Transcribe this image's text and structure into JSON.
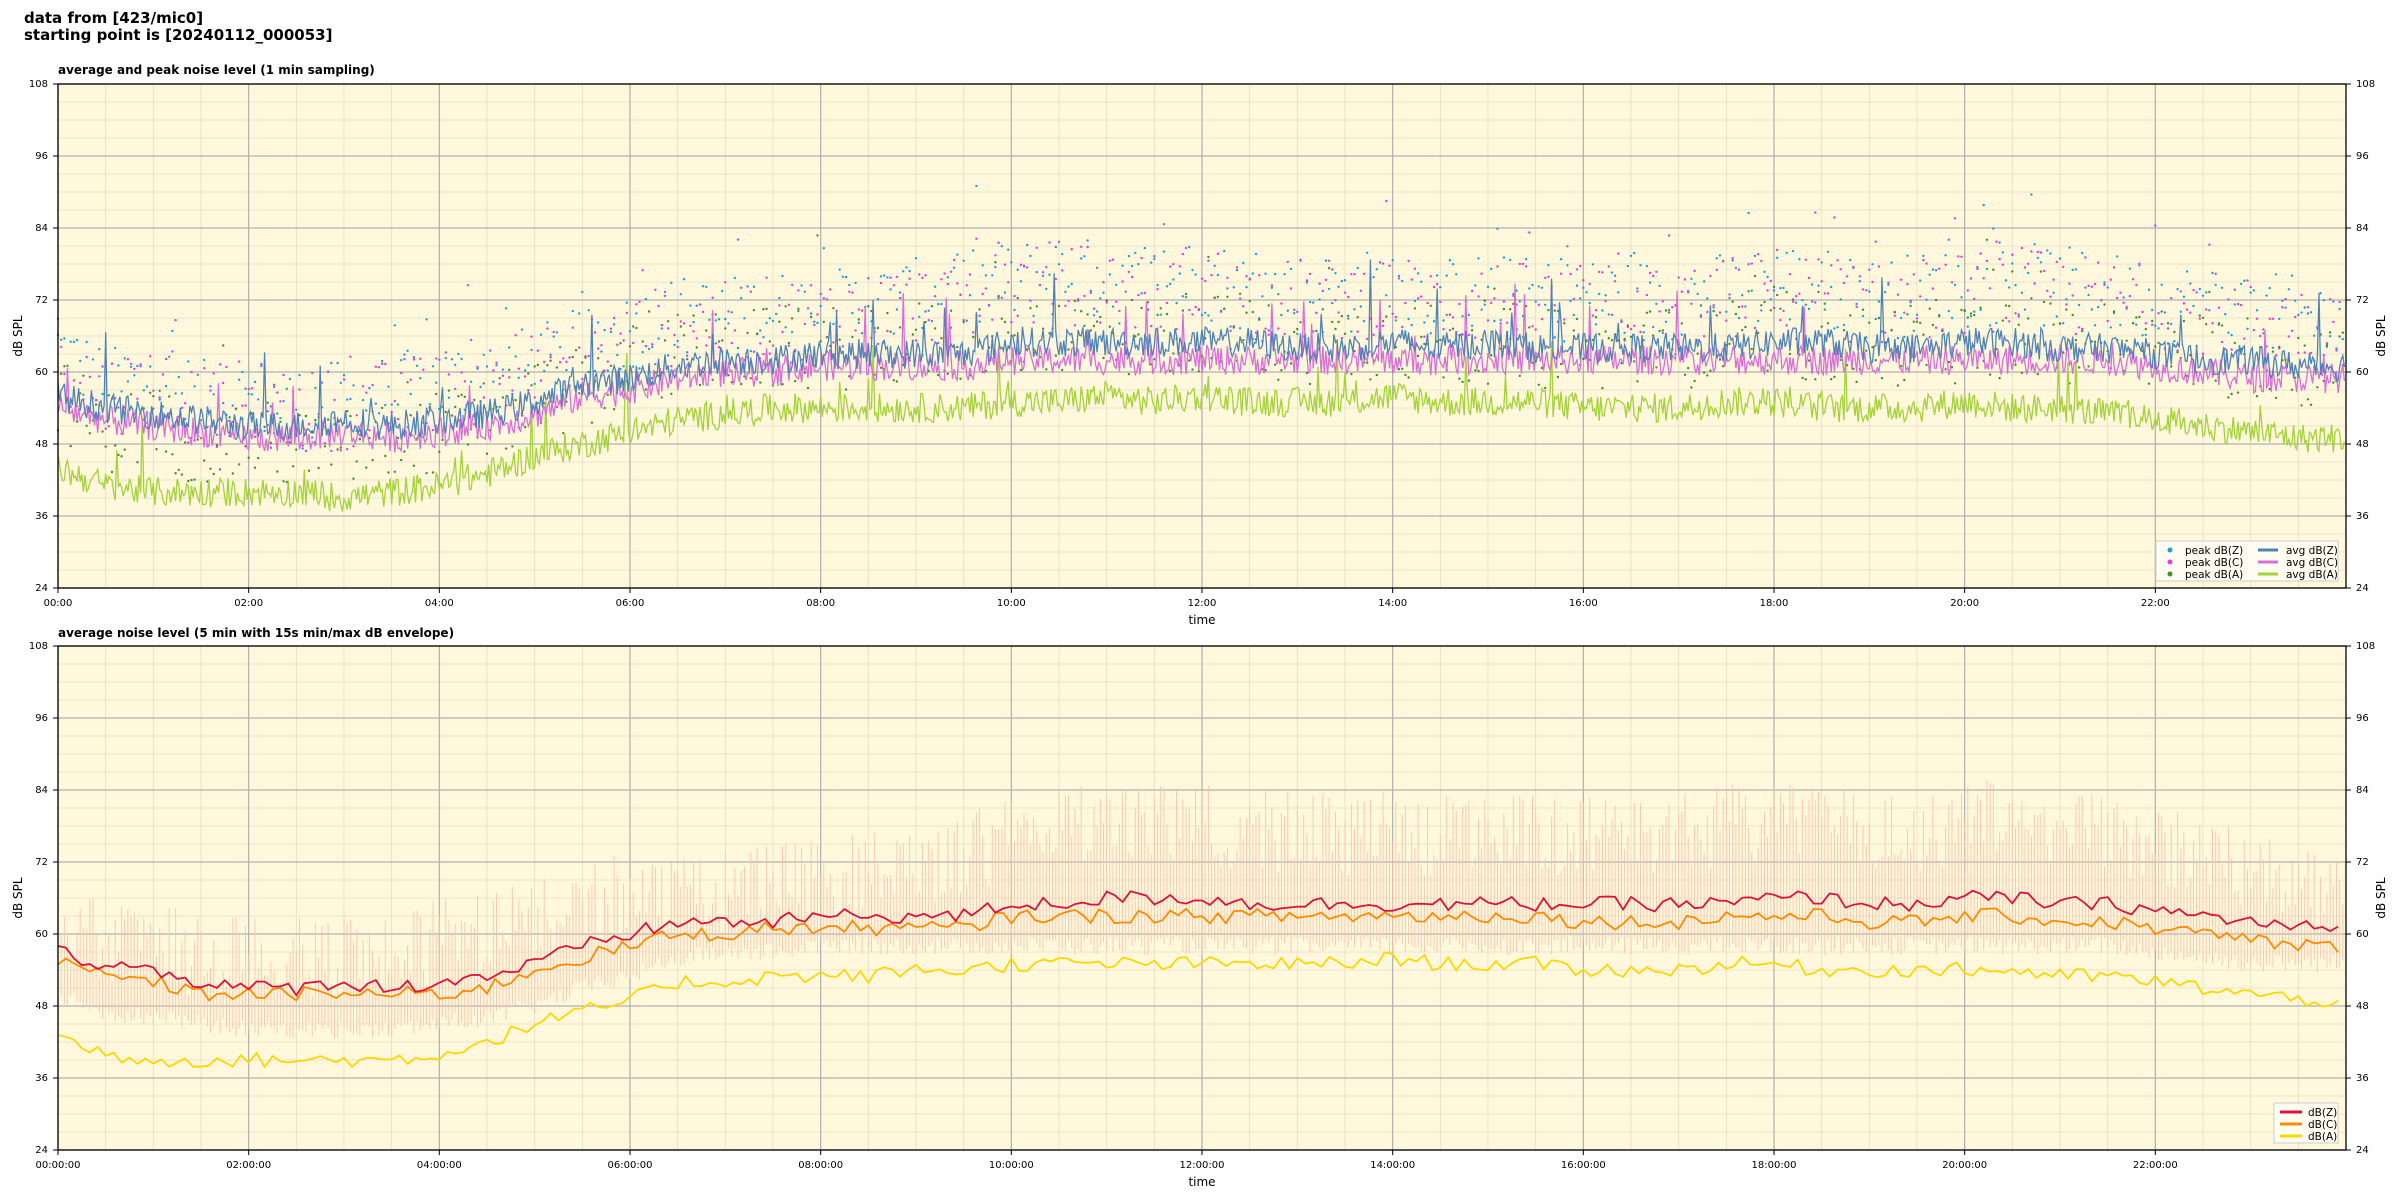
{
  "header": {
    "line1": "data from [423/mic0]",
    "line2": "starting point is [20240112_000053]"
  },
  "colors": {
    "plot_bg": "#fff8dc",
    "grid_major": "#b0b0b0",
    "grid_minor": "#e3ddc4",
    "peak_z": "#1f9ed9",
    "peak_c": "#e23ce0",
    "peak_a": "#4a8a2a",
    "avg_z": "#4f83b7",
    "avg_c": "#d86fd8",
    "avg_a": "#a4d23a",
    "z": "#dc143c",
    "c": "#ff8c00",
    "a": "#ffd700",
    "envelope": "#f6c2ad"
  },
  "chart_data": [
    {
      "type": "line",
      "title": "average and peak noise level (1 min sampling)",
      "xlabel": "time",
      "ylabel": "dB SPL",
      "ylim": [
        24,
        108
      ],
      "yticks": [
        24,
        36,
        48,
        60,
        72,
        84,
        96,
        108
      ],
      "xlim_hours": [
        0,
        24
      ],
      "xtick_labels": [
        "00:00",
        "02:00",
        "04:00",
        "06:00",
        "08:00",
        "10:00",
        "12:00",
        "14:00",
        "16:00",
        "18:00",
        "20:00",
        "22:00"
      ],
      "grid": true,
      "legend_position": "lower-right",
      "x_hours": [
        0,
        0.5,
        1,
        1.5,
        2,
        2.5,
        3,
        3.5,
        4,
        4.5,
        5,
        5.5,
        6,
        6.5,
        7,
        7.5,
        8,
        8.5,
        9,
        9.5,
        10,
        10.5,
        11,
        11.5,
        12,
        12.5,
        13,
        13.5,
        14,
        14.5,
        15,
        15.5,
        16,
        16.5,
        17,
        17.5,
        18,
        18.5,
        19,
        19.5,
        20,
        20.5,
        21,
        21.5,
        22,
        22.5,
        23,
        23.5,
        24
      ],
      "series": [
        {
          "name": "peak dB(Z)",
          "kind": "scatter",
          "values": [
            64,
            57,
            59,
            55,
            56,
            54,
            55,
            56,
            58,
            59,
            61,
            63,
            67,
            69,
            69,
            70,
            70,
            71,
            72,
            73,
            75,
            76,
            75,
            74,
            76,
            73,
            73,
            73,
            74,
            72,
            73,
            72,
            72,
            72,
            72,
            73,
            75,
            74,
            72,
            73,
            74,
            75,
            74,
            73,
            72,
            71,
            70,
            69,
            69
          ]
        },
        {
          "name": "peak dB(C)",
          "kind": "scatter",
          "values": [
            63,
            56,
            58,
            54,
            55,
            53,
            54,
            55,
            57,
            58,
            60,
            62,
            66,
            68,
            68,
            69,
            69,
            70,
            71,
            72,
            74,
            75,
            74,
            73,
            75,
            72,
            72,
            72,
            73,
            71,
            72,
            71,
            71,
            71,
            71,
            72,
            74,
            73,
            71,
            72,
            73,
            74,
            73,
            72,
            71,
            70,
            69,
            68,
            68
          ]
        },
        {
          "name": "peak dB(A)",
          "kind": "scatter",
          "values": [
            56,
            50,
            51,
            48,
            49,
            47,
            47,
            48,
            50,
            52,
            55,
            57,
            61,
            63,
            63,
            64,
            64,
            64,
            65,
            65,
            66,
            67,
            66,
            66,
            67,
            65,
            65,
            65,
            66,
            64,
            65,
            64,
            64,
            64,
            64,
            65,
            66,
            65,
            64,
            65,
            65,
            66,
            65,
            65,
            64,
            63,
            62,
            61,
            61
          ]
        },
        {
          "name": "avg dB(Z)",
          "kind": "line",
          "values": [
            56,
            54,
            53,
            52,
            51,
            51,
            52,
            51,
            52,
            53,
            55,
            58,
            59,
            61,
            62,
            62,
            63,
            63,
            63,
            63,
            65,
            65,
            65,
            65,
            65,
            65,
            64,
            64,
            65,
            64,
            65,
            64,
            64,
            64,
            64,
            64,
            65,
            65,
            64,
            64,
            65,
            65,
            64,
            64,
            63,
            62,
            62,
            61,
            61
          ]
        },
        {
          "name": "avg dB(C)",
          "kind": "line",
          "values": [
            54,
            52,
            51,
            50,
            49,
            49,
            50,
            49,
            50,
            51,
            53,
            56,
            57,
            59,
            60,
            60,
            61,
            61,
            61,
            61,
            62,
            62,
            62,
            62,
            62,
            62,
            62,
            62,
            62,
            62,
            62,
            62,
            62,
            62,
            62,
            62,
            62,
            62,
            62,
            62,
            62,
            62,
            62,
            62,
            61,
            60,
            59,
            59,
            59
          ]
        },
        {
          "name": "avg dB(A)",
          "kind": "line",
          "values": [
            44,
            41,
            40,
            40,
            40,
            40,
            39,
            40,
            41,
            43,
            46,
            48,
            50,
            52,
            53,
            54,
            54,
            54,
            54,
            54,
            55,
            55,
            56,
            55,
            56,
            55,
            55,
            55,
            56,
            55,
            55,
            55,
            54,
            54,
            54,
            55,
            55,
            54,
            54,
            54,
            55,
            54,
            54,
            53,
            52,
            51,
            50,
            49,
            49
          ]
        }
      ]
    },
    {
      "type": "line",
      "title": "average noise level (5 min with 15s min/max dB envelope)",
      "xlabel": "time",
      "ylabel": "dB SPL",
      "ylim": [
        24,
        108
      ],
      "yticks": [
        24,
        36,
        48,
        60,
        72,
        84,
        96,
        108
      ],
      "xlim_hours": [
        0,
        24
      ],
      "xtick_labels": [
        "00:00:00",
        "02:00:00",
        "04:00:00",
        "06:00:00",
        "08:00:00",
        "10:00:00",
        "12:00:00",
        "14:00:00",
        "16:00:00",
        "18:00:00",
        "20:00:00",
        "22:00:00"
      ],
      "grid": true,
      "legend_position": "lower-right",
      "x_hours": [
        0,
        0.5,
        1,
        1.5,
        2,
        2.5,
        3,
        3.5,
        4,
        4.5,
        5,
        5.5,
        6,
        6.5,
        7,
        7.5,
        8,
        8.5,
        9,
        9.5,
        10,
        10.5,
        11,
        11.5,
        12,
        12.5,
        13,
        13.5,
        14,
        14.5,
        15,
        15.5,
        16,
        16.5,
        17,
        17.5,
        18,
        18.5,
        19,
        19.5,
        20,
        20.5,
        21,
        21.5,
        22,
        22.5,
        23,
        23.5,
        24
      ],
      "envelope": {
        "min": [
          50,
          47,
          46,
          45,
          44,
          44,
          44,
          44,
          45,
          46,
          48,
          51,
          53,
          56,
          57,
          57,
          58,
          58,
          58,
          58,
          58,
          58,
          58,
          58,
          58,
          58,
          58,
          58,
          58,
          58,
          58,
          58,
          58,
          58,
          58,
          58,
          58,
          58,
          58,
          58,
          58,
          58,
          58,
          58,
          57,
          56,
          55,
          55,
          55
        ],
        "max": [
          70,
          65,
          66,
          63,
          64,
          63,
          63,
          64,
          66,
          67,
          69,
          71,
          74,
          74,
          74,
          75,
          76,
          77,
          78,
          80,
          84,
          86,
          86,
          85,
          86,
          84,
          84,
          83,
          85,
          83,
          84,
          83,
          83,
          83,
          84,
          85,
          86,
          85,
          84,
          84,
          86,
          86,
          85,
          84,
          82,
          80,
          78,
          76,
          74
        ]
      },
      "series": [
        {
          "name": "dB(Z)",
          "values": [
            57,
            55,
            54,
            52,
            51,
            51,
            52,
            51,
            52,
            53,
            55,
            58,
            60,
            62,
            62,
            62,
            63,
            63,
            63,
            63,
            65,
            65,
            66,
            66,
            66,
            65,
            65,
            65,
            65,
            65,
            65,
            65,
            65,
            65,
            65,
            65,
            66,
            66,
            65,
            65,
            66,
            66,
            65,
            65,
            64,
            63,
            62,
            61,
            61
          ]
        },
        {
          "name": "dB(C)",
          "values": [
            55,
            53,
            52,
            50,
            50,
            50,
            50,
            50,
            50,
            51,
            54,
            56,
            58,
            60,
            60,
            61,
            61,
            61,
            61,
            61,
            63,
            63,
            63,
            63,
            63,
            63,
            63,
            63,
            63,
            63,
            63,
            63,
            62,
            62,
            62,
            63,
            63,
            63,
            62,
            62,
            63,
            63,
            62,
            62,
            61,
            60,
            59,
            58,
            58
          ]
        },
        {
          "name": "dB(A)",
          "values": [
            43,
            40,
            39,
            39,
            39,
            39,
            39,
            39,
            40,
            42,
            45,
            47,
            49,
            52,
            52,
            53,
            53,
            53,
            54,
            54,
            55,
            55,
            55,
            55,
            55,
            55,
            55,
            55,
            56,
            55,
            55,
            55,
            54,
            54,
            54,
            55,
            55,
            54,
            54,
            54,
            54,
            54,
            53,
            53,
            52,
            51,
            50,
            49,
            49
          ]
        }
      ]
    }
  ]
}
